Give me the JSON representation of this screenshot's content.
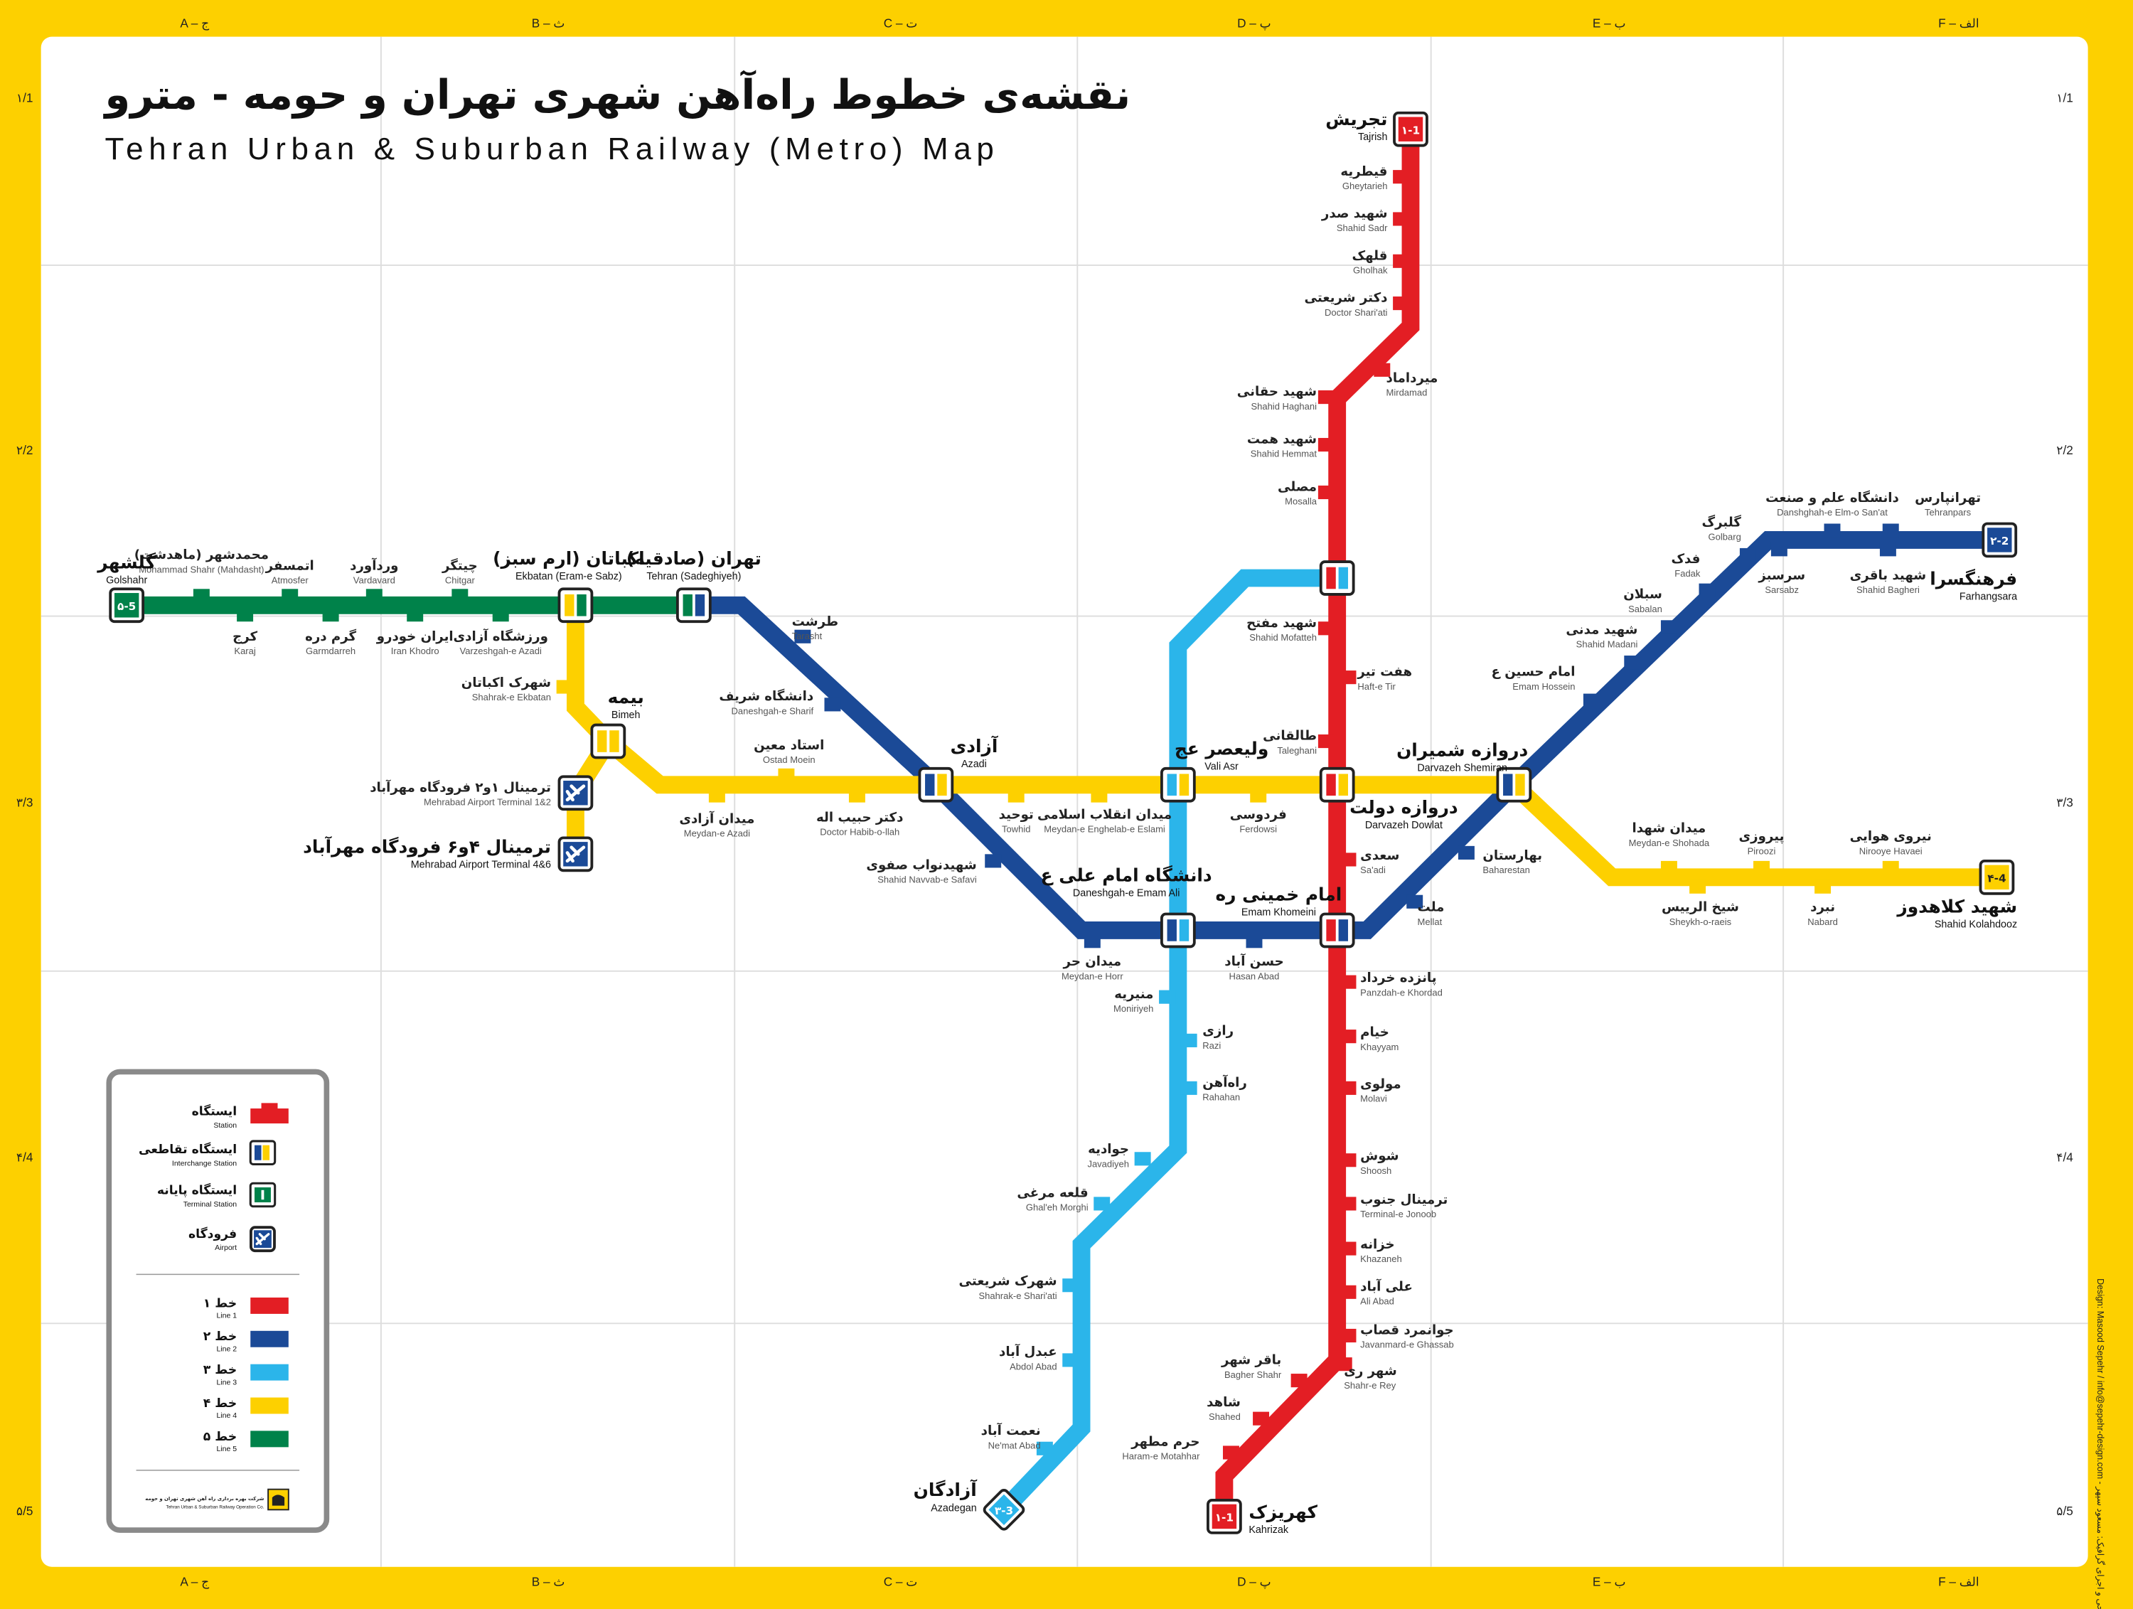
{
  "title": {
    "fa": "نقشه‌ی خطوط راه‌آهن شهری تهران و حومه - مترو",
    "en": "Tehran Urban & Suburban Railway (Metro) Map"
  },
  "grid": {
    "columns": [
      "A – ج",
      "B – ث",
      "C – ت",
      "D – پ",
      "E – ب",
      "F – الف"
    ],
    "rows": [
      "۱/1",
      "۲/2",
      "۳/3",
      "۴/4",
      "۵/5"
    ]
  },
  "credit": "Design: Masood Sepehr / info@sepehr-design.com - طراحی و اجرای گرافیک: مسعود سپهر",
  "lines": [
    {
      "id": "1",
      "color": "#E31E24",
      "terminals": [
        {
          "fa": "تجریش",
          "en": "Tajrish",
          "badge": "۱-1"
        },
        {
          "fa": "کهریزک",
          "en": "Kahrizak",
          "badge": "۱-1"
        }
      ],
      "stations": [
        {
          "fa": "قیطریه",
          "en": "Gheytarieh"
        },
        {
          "fa": "شهید صدر",
          "en": "Shahid Sadr"
        },
        {
          "fa": "قلهک",
          "en": "Gholhak"
        },
        {
          "fa": "دکتر شریعتی",
          "en": "Doctor Shari'ati"
        },
        {
          "fa": "میرداماد",
          "en": "Mirdamad"
        },
        {
          "fa": "شهید حقانی",
          "en": "Shahid Haghani"
        },
        {
          "fa": "شهید همت",
          "en": "Shahid Hemmat"
        },
        {
          "fa": "مصلی",
          "en": "Mosalla"
        },
        {
          "fa": "شهید مفتح",
          "en": "Shahid Mofatteh"
        },
        {
          "fa": "هفت تیر",
          "en": "Haft-e Tir"
        },
        {
          "fa": "طالقانی",
          "en": "Taleghani"
        },
        {
          "fa": "سعدی",
          "en": "Sa'adi"
        },
        {
          "fa": "پانزده خرداد",
          "en": "Panzdah-e Khordad"
        },
        {
          "fa": "خیام",
          "en": "Khayyam"
        },
        {
          "fa": "مولوی",
          "en": "Molavi"
        },
        {
          "fa": "شوش",
          "en": "Shoosh"
        },
        {
          "fa": "ترمینال جنوب",
          "en": "Terminal-e Jonoob"
        },
        {
          "fa": "خزانه",
          "en": "Khazaneh"
        },
        {
          "fa": "علی آباد",
          "en": "Ali Abad"
        },
        {
          "fa": "جوانمرد قصاب",
          "en": "Javanmard-e Ghassab"
        },
        {
          "fa": "شهر ری",
          "en": "Shahr-e Rey"
        },
        {
          "fa": "باقر شهر",
          "en": "Bagher Shahr"
        },
        {
          "fa": "شاهد",
          "en": "Shahed"
        },
        {
          "fa": "حرم مطهر",
          "en": "Haram-e Motahhar"
        }
      ]
    },
    {
      "id": "2",
      "color": "#1B4A97",
      "terminals": [
        {
          "fa": "فرهنگسرا",
          "en": "Farhangsara",
          "badge": "۲-2"
        }
      ],
      "stations": [
        {
          "fa": "تهرانپارس",
          "en": "Tehranpars"
        },
        {
          "fa": "دانشگاه علم و صنعت",
          "en": "Danshghah-e Elm-o San'at"
        },
        {
          "fa": "شهید باقری",
          "en": "Shahid Bagheri"
        },
        {
          "fa": "سرسبز",
          "en": "Sarsabz"
        },
        {
          "fa": "گلبرگ",
          "en": "Golbarg"
        },
        {
          "fa": "فدک",
          "en": "Fadak"
        },
        {
          "fa": "سبلان",
          "en": "Sabalan"
        },
        {
          "fa": "شهید مدنی",
          "en": "Shahid Madani"
        },
        {
          "fa": "امام حسین ع",
          "en": "Emam Hossein"
        },
        {
          "fa": "بهارستان",
          "en": "Baharestan"
        },
        {
          "fa": "ملت",
          "en": "Mellat"
        },
        {
          "fa": "حسن آباد",
          "en": "Hasan Abad"
        },
        {
          "fa": "میدان حر",
          "en": "Meydan-e Horr"
        },
        {
          "fa": "شهیدنواب صفوی",
          "en": "Shahid Navvab-e Safavi"
        },
        {
          "fa": "دانشگاه شریف",
          "en": "Daneshgah-e Sharif"
        },
        {
          "fa": "طرشت",
          "en": "Tarasht"
        }
      ]
    },
    {
      "id": "3",
      "color": "#2BB5EA",
      "terminals": [
        {
          "fa": "آزادگان",
          "en": "Azadegan",
          "badge": "۳-3"
        }
      ],
      "stations": [
        {
          "fa": "منیریه",
          "en": "Moniriyeh"
        },
        {
          "fa": "رازی",
          "en": "Razi"
        },
        {
          "fa": "راه‌آهن",
          "en": "Rahahan"
        },
        {
          "fa": "جوادیه",
          "en": "Javadiyeh"
        },
        {
          "fa": "قلعه مرغی",
          "en": "Ghal'eh Morghi"
        },
        {
          "fa": "شهرک شریعتی",
          "en": "Shahrak-e Shari'ati"
        },
        {
          "fa": "عبدل آباد",
          "en": "Abdol Abad"
        },
        {
          "fa": "نعمت آباد",
          "en": "Ne'mat Abad"
        }
      ]
    },
    {
      "id": "4",
      "color": "#FDD000",
      "terminals": [
        {
          "fa": "شهید کلاهدوز",
          "en": "Shahid Kolahdooz",
          "badge": "۴-4"
        }
      ],
      "stations": [
        {
          "fa": "نیروی هوایی",
          "en": "Nirooye Havaei"
        },
        {
          "fa": "نبرد",
          "en": "Nabard"
        },
        {
          "fa": "پیروزی",
          "en": "Piroozi"
        },
        {
          "fa": "شیخ الرییس",
          "en": "Sheykh-o-raeis"
        },
        {
          "fa": "میدان شهدا",
          "en": "Meydan-e Shohada"
        },
        {
          "fa": "فردوسی",
          "en": "Ferdowsi"
        },
        {
          "fa": "میدان انقلاب اسلامی",
          "en": "Meydan-e Enghelab-e Eslami"
        },
        {
          "fa": "توحید",
          "en": "Towhid"
        },
        {
          "fa": "دکتر حبیب اله",
          "en": "Doctor Habib-o-llah"
        },
        {
          "fa": "استاد معین",
          "en": "Ostad Moein"
        },
        {
          "fa": "میدان آزادی",
          "en": "Meydan-e Azadi"
        },
        {
          "fa": "شهرک اکباتان",
          "en": "Shahrak-e Ekbatan"
        }
      ]
    },
    {
      "id": "5",
      "color": "#00824A",
      "terminals": [
        {
          "fa": "گلشهر",
          "en": "Golshahr",
          "badge": "۵-5"
        }
      ],
      "stations": [
        {
          "fa": "محمدشهر (ماهدشت)",
          "en": "Mohammad Shahr (Mahdasht)"
        },
        {
          "fa": "اتمسفر",
          "en": "Atmosfer"
        },
        {
          "fa": "وردآورد",
          "en": "Vardavard"
        },
        {
          "fa": "چیتگر",
          "en": "Chitgar"
        },
        {
          "fa": "کرج",
          "en": "Karaj"
        },
        {
          "fa": "گرم دره",
          "en": "Garmdarreh"
        },
        {
          "fa": "ایران خودرو",
          "en": "Iran Khodro"
        },
        {
          "fa": "ورزشگاه آزادی",
          "en": "Varzeshgah-e Azadi"
        }
      ]
    }
  ],
  "interchanges": [
    {
      "fa": "اکباتان (ارم سبز)",
      "en": "Ekbatan (Eram-e Sabz)"
    },
    {
      "fa": "تهران (صادقیه)",
      "en": "Tehran (Sadeghiyeh)"
    },
    {
      "fa": "بیمه",
      "en": "Bimeh"
    },
    {
      "fa": "آزادی",
      "en": "Azadi"
    },
    {
      "fa": "ولیعصر عج",
      "en": "Vali Asr"
    },
    {
      "fa": "دروازه دولت",
      "en": "Darvazeh Dowlat"
    },
    {
      "fa": "دروازه شمیران",
      "en": "Darvazeh Shemiran"
    },
    {
      "fa": "امام خمینی ره",
      "en": "Emam Khomeini"
    },
    {
      "fa": "دانشگاه امام علی ع",
      "en": "Daneshgah-e Emam Ali"
    },
    {
      "fa": "",
      "en": ""
    }
  ],
  "airports": [
    {
      "fa": "ترمینال ۱و۲ فرودگاه مهرآباد",
      "en": "Mehrabad Airport Terminal 1&2"
    },
    {
      "fa": "ترمینال ۴و۶ فرودگاه مهرآباد",
      "en": "Mehrabad Airport Terminal 4&6"
    }
  ],
  "legend": {
    "symbols": [
      {
        "fa": "ایستگاه",
        "en": "Station"
      },
      {
        "fa": "ایستگاه تقاطعی",
        "en": "Interchange Station"
      },
      {
        "fa": "ایستگاه پایانه",
        "en": "Terminal Station"
      },
      {
        "fa": "فرودگاه",
        "en": "Airport"
      }
    ],
    "lines": [
      {
        "fa": "خط ۱",
        "en": "Line 1"
      },
      {
        "fa": "خط ۲",
        "en": "Line 2"
      },
      {
        "fa": "خط ۳",
        "en": "Line 3"
      },
      {
        "fa": "خط ۴",
        "en": "Line 4"
      },
      {
        "fa": "خط ۵",
        "en": "Line 5"
      }
    ],
    "operator_fa": "شرکت بهره برداری راه آهن شهری تهران و حومه",
    "operator_en": "Tehran Urban & Suburban Railway Operation Co."
  }
}
